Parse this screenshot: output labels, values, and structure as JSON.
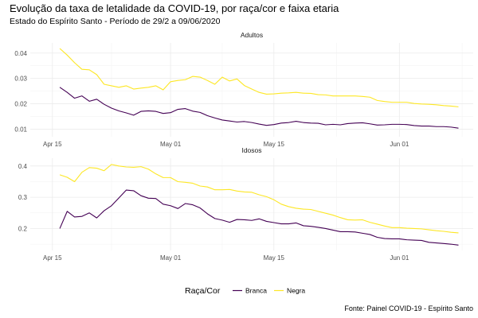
{
  "title": "Evolução da taxa de letalidade da COVID-19, por raça/cor e faixa etaria",
  "subtitle": "Estado do Espírito Santo - Período de 29/2 a 09/06/2020",
  "caption": "Fonte: Painel COVID-19 - Espírito Santo",
  "legend": {
    "title": "Raça/Cor",
    "position": "bottom",
    "entries": [
      {
        "name": "Branca",
        "color": "#440154"
      },
      {
        "name": "Negra",
        "color": "#FDE725"
      }
    ]
  },
  "chart_data": [
    {
      "type": "line",
      "facet": "Adultos",
      "x_type": "date",
      "xlim": [
        "2020-04-12",
        "2020-06-11"
      ],
      "x_ticks": [
        {
          "value": "2020-04-15",
          "label": "Apr 15"
        },
        {
          "value": "2020-05-01",
          "label": "May 01"
        },
        {
          "value": "2020-05-15",
          "label": "May 15"
        },
        {
          "value": "2020-06-01",
          "label": "Jun 01"
        }
      ],
      "ylim": [
        0.007,
        0.044
      ],
      "y_ticks": [
        {
          "value": 0.01,
          "label": "0.01"
        },
        {
          "value": 0.02,
          "label": "0.02"
        },
        {
          "value": 0.03,
          "label": "0.03"
        },
        {
          "value": 0.04,
          "label": "0.04"
        }
      ],
      "grid": true,
      "x": [
        "2020-04-16",
        "2020-04-17",
        "2020-04-18",
        "2020-04-19",
        "2020-04-20",
        "2020-04-21",
        "2020-04-22",
        "2020-04-23",
        "2020-04-24",
        "2020-04-25",
        "2020-04-26",
        "2020-04-27",
        "2020-04-28",
        "2020-04-29",
        "2020-04-30",
        "2020-05-01",
        "2020-05-02",
        "2020-05-03",
        "2020-05-04",
        "2020-05-05",
        "2020-05-06",
        "2020-05-07",
        "2020-05-08",
        "2020-05-09",
        "2020-05-10",
        "2020-05-11",
        "2020-05-12",
        "2020-05-13",
        "2020-05-14",
        "2020-05-15",
        "2020-05-16",
        "2020-05-17",
        "2020-05-18",
        "2020-05-19",
        "2020-05-20",
        "2020-05-21",
        "2020-05-22",
        "2020-05-23",
        "2020-05-24",
        "2020-05-25",
        "2020-05-26",
        "2020-05-27",
        "2020-05-28",
        "2020-05-29",
        "2020-05-30",
        "2020-05-31",
        "2020-06-01",
        "2020-06-02",
        "2020-06-03",
        "2020-06-04",
        "2020-06-05",
        "2020-06-06",
        "2020-06-07",
        "2020-06-08",
        "2020-06-09"
      ],
      "series": [
        {
          "name": "Branca",
          "color": "#440154",
          "values": [
            0.0265,
            0.0245,
            0.0222,
            0.0231,
            0.021,
            0.0218,
            0.0198,
            0.0183,
            0.0172,
            0.0164,
            0.0155,
            0.017,
            0.0172,
            0.017,
            0.0162,
            0.0165,
            0.0178,
            0.0181,
            0.0171,
            0.0166,
            0.0153,
            0.0144,
            0.0136,
            0.0132,
            0.0128,
            0.013,
            0.0126,
            0.012,
            0.0115,
            0.0118,
            0.0124,
            0.0126,
            0.0131,
            0.0126,
            0.0124,
            0.0123,
            0.0117,
            0.0119,
            0.0117,
            0.0122,
            0.0124,
            0.0125,
            0.0121,
            0.0116,
            0.0117,
            0.0119,
            0.0119,
            0.0118,
            0.0114,
            0.0112,
            0.0112,
            0.011,
            0.011,
            0.0108,
            0.0104
          ]
        },
        {
          "name": "Negra",
          "color": "#FDE725",
          "values": [
            0.0418,
            0.0392,
            0.0362,
            0.0336,
            0.0334,
            0.0315,
            0.0277,
            0.0271,
            0.0265,
            0.0271,
            0.0258,
            0.0262,
            0.0265,
            0.0271,
            0.0255,
            0.0287,
            0.0292,
            0.0295,
            0.0308,
            0.0305,
            0.0292,
            0.0277,
            0.0305,
            0.029,
            0.0298,
            0.0272,
            0.0258,
            0.0245,
            0.0238,
            0.0239,
            0.0242,
            0.0243,
            0.0245,
            0.0242,
            0.0241,
            0.0236,
            0.0235,
            0.0231,
            0.0231,
            0.0231,
            0.0231,
            0.0229,
            0.0226,
            0.0213,
            0.0209,
            0.0206,
            0.0206,
            0.0206,
            0.0201,
            0.0199,
            0.0198,
            0.0196,
            0.0193,
            0.0191,
            0.0188
          ]
        }
      ]
    },
    {
      "type": "line",
      "facet": "Idosos",
      "x_type": "date",
      "xlim": [
        "2020-04-12",
        "2020-06-11"
      ],
      "x_ticks": [
        {
          "value": "2020-04-15",
          "label": "Apr 15"
        },
        {
          "value": "2020-05-01",
          "label": "May 01"
        },
        {
          "value": "2020-05-15",
          "label": "May 15"
        },
        {
          "value": "2020-06-01",
          "label": "Jun 01"
        }
      ],
      "ylim": [
        0.13,
        0.425
      ],
      "y_ticks": [
        {
          "value": 0.2,
          "label": "0.2"
        },
        {
          "value": 0.3,
          "label": "0.3"
        },
        {
          "value": 0.4,
          "label": "0.4"
        }
      ],
      "grid": true,
      "x": [
        "2020-04-16",
        "2020-04-17",
        "2020-04-18",
        "2020-04-19",
        "2020-04-20",
        "2020-04-21",
        "2020-04-22",
        "2020-04-23",
        "2020-04-24",
        "2020-04-25",
        "2020-04-26",
        "2020-04-27",
        "2020-04-28",
        "2020-04-29",
        "2020-04-30",
        "2020-05-01",
        "2020-05-02",
        "2020-05-03",
        "2020-05-04",
        "2020-05-05",
        "2020-05-06",
        "2020-05-07",
        "2020-05-08",
        "2020-05-09",
        "2020-05-10",
        "2020-05-11",
        "2020-05-12",
        "2020-05-13",
        "2020-05-14",
        "2020-05-15",
        "2020-05-16",
        "2020-05-17",
        "2020-05-18",
        "2020-05-19",
        "2020-05-20",
        "2020-05-21",
        "2020-05-22",
        "2020-05-23",
        "2020-05-24",
        "2020-05-25",
        "2020-05-26",
        "2020-05-27",
        "2020-05-28",
        "2020-05-29",
        "2020-05-30",
        "2020-05-31",
        "2020-06-01",
        "2020-06-02",
        "2020-06-03",
        "2020-06-04",
        "2020-06-05",
        "2020-06-06",
        "2020-06-07",
        "2020-06-08",
        "2020-06-09"
      ],
      "series": [
        {
          "name": "Branca",
          "color": "#440154",
          "values": [
            0.2,
            0.255,
            0.237,
            0.239,
            0.25,
            0.234,
            0.257,
            0.273,
            0.298,
            0.323,
            0.321,
            0.305,
            0.297,
            0.296,
            0.278,
            0.273,
            0.264,
            0.28,
            0.276,
            0.266,
            0.247,
            0.232,
            0.227,
            0.22,
            0.229,
            0.228,
            0.226,
            0.231,
            0.223,
            0.219,
            0.215,
            0.215,
            0.218,
            0.209,
            0.207,
            0.204,
            0.2,
            0.195,
            0.19,
            0.19,
            0.189,
            0.185,
            0.181,
            0.172,
            0.168,
            0.167,
            0.167,
            0.164,
            0.163,
            0.162,
            0.156,
            0.154,
            0.152,
            0.15,
            0.147
          ]
        },
        {
          "name": "Negra",
          "color": "#FDE725",
          "values": [
            0.372,
            0.364,
            0.35,
            0.38,
            0.395,
            0.393,
            0.385,
            0.405,
            0.4,
            0.397,
            0.396,
            0.398,
            0.39,
            0.375,
            0.363,
            0.363,
            0.35,
            0.348,
            0.345,
            0.336,
            0.333,
            0.324,
            0.324,
            0.325,
            0.32,
            0.317,
            0.316,
            0.308,
            0.302,
            0.292,
            0.278,
            0.27,
            0.265,
            0.262,
            0.261,
            0.255,
            0.249,
            0.243,
            0.235,
            0.228,
            0.227,
            0.228,
            0.22,
            0.214,
            0.208,
            0.203,
            0.203,
            0.201,
            0.2,
            0.199,
            0.196,
            0.193,
            0.191,
            0.188,
            0.186
          ]
        }
      ]
    }
  ]
}
